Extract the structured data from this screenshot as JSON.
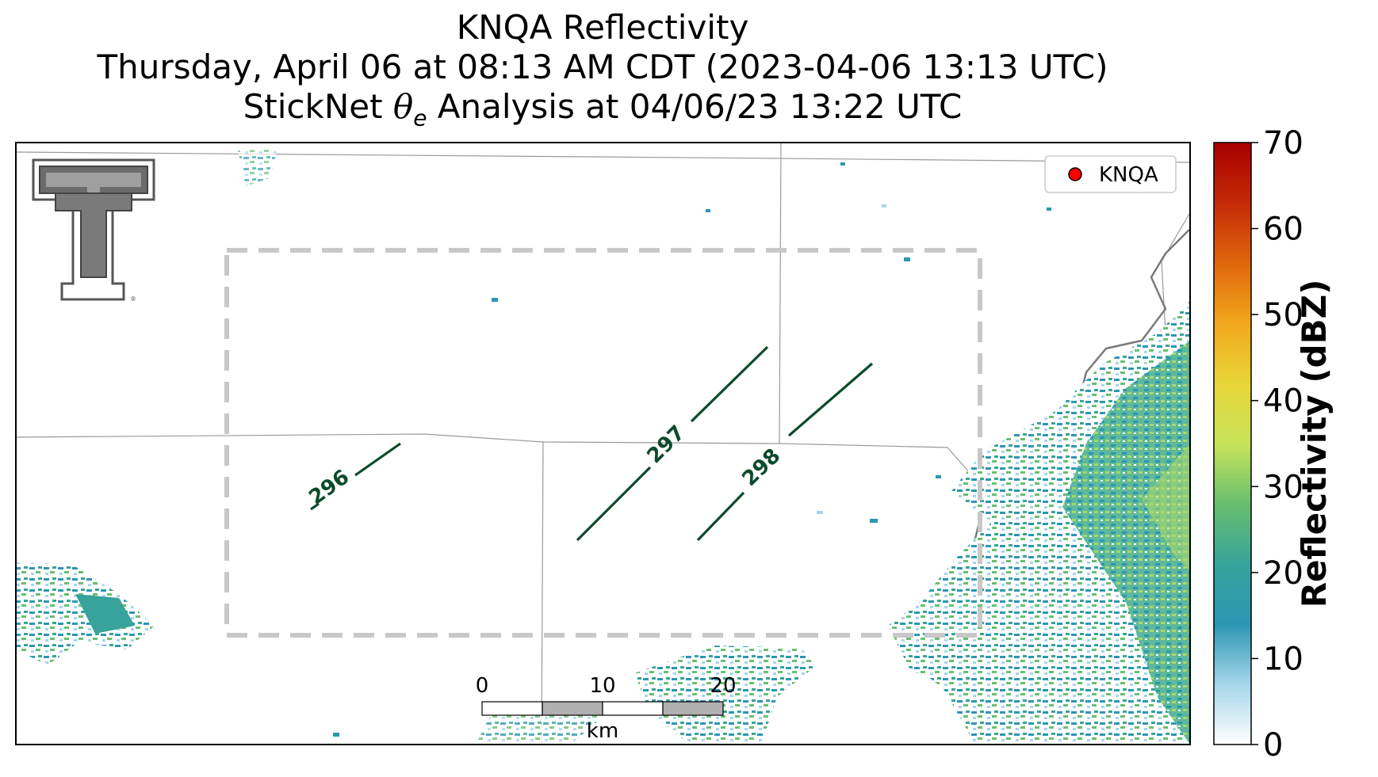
{
  "titles": {
    "line1": "KNQA Reflectivity",
    "line2": "Thursday, April 06 at 08:13 AM CDT (2023-04-06 13:13 UTC)",
    "line3_prefix": "StickNet ",
    "line3_theta": "θ",
    "line3_sub": "e",
    "line3_suffix": " Analysis at 04/06/23 13:22 UTC"
  },
  "legend": {
    "marker_label": "KNQA",
    "marker_color": "#ff0000"
  },
  "contours": [
    {
      "label": "296",
      "color": "#0b4a2a"
    },
    {
      "label": "297",
      "color": "#0b4a2a"
    },
    {
      "label": "298",
      "color": "#0b4a2a"
    }
  ],
  "scale_bar": {
    "ticks": [
      "0",
      "10",
      "20"
    ],
    "unit": "km"
  },
  "colorbar": {
    "label": "Reflectivity (dBZ)",
    "min": 0,
    "max": 70,
    "ticks": [
      "0",
      "10",
      "20",
      "30",
      "40",
      "50",
      "60",
      "70"
    ],
    "colors": [
      "#ffffff",
      "#a6d6ea",
      "#2b96b4",
      "#37a39a",
      "#68bf6e",
      "#c8e35a",
      "#e8d638",
      "#f2a71c",
      "#e0660c",
      "#c42a06",
      "#a80000"
    ]
  },
  "logo": {
    "description_icon": "texas-tech-double-t-logo"
  },
  "analysis_box": {
    "style": "dashed",
    "color": "#c8c8c8"
  }
}
